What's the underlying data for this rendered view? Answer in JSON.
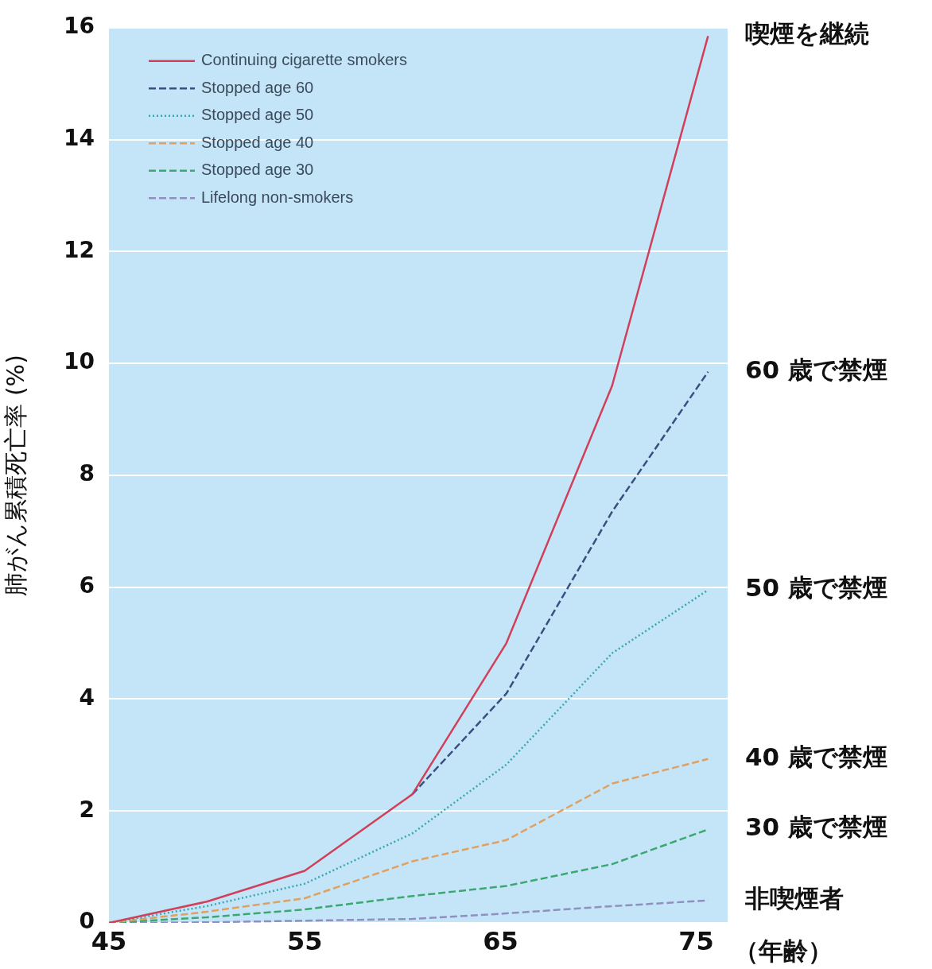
{
  "chart_data": {
    "type": "line",
    "xlabel": "（年齢）",
    "ylabel": "肺がん累積死亡率 (%)",
    "x": [
      45,
      50,
      55,
      60.5,
      65.3,
      70.7,
      75.6
    ],
    "series": [
      {
        "name": "Continuing cigarette smokers",
        "color": "#d0405a",
        "line_style": "solid",
        "values": [
          0,
          0.38,
          0.93,
          2.3,
          5.0,
          9.6,
          15.85
        ]
      },
      {
        "name": "Stopped age 60",
        "color": "#3a4f80",
        "line_style": "dashed",
        "x": [
          60.5,
          65.3,
          70.7,
          75.6
        ],
        "values": [
          2.3,
          4.1,
          7.35,
          9.85
        ]
      },
      {
        "name": "Stopped age 50",
        "color": "#3aa6b0",
        "line_style": "dotted",
        "values": [
          0,
          0.3,
          0.7,
          1.6,
          2.83,
          4.82,
          5.95
        ]
      },
      {
        "name": "Stopped age 40",
        "color": "#e0a060",
        "line_style": "dashed",
        "values": [
          0,
          0.2,
          0.44,
          1.1,
          1.48,
          2.49,
          2.93
        ]
      },
      {
        "name": "Stopped age 30",
        "color": "#3aa870",
        "line_style": "dashed",
        "values": [
          0,
          0.1,
          0.24,
          0.48,
          0.66,
          1.05,
          1.67
        ]
      },
      {
        "name": "Lifelong non-smokers",
        "color": "#9090c0",
        "line_style": "dashed",
        "values": [
          0,
          0.01,
          0.04,
          0.07,
          0.17,
          0.3,
          0.4
        ]
      }
    ],
    "xlim": [
      45,
      76.6
    ],
    "ylim": [
      0,
      16
    ],
    "xticks": [
      45,
      55,
      65,
      75
    ],
    "yticks": [
      0,
      2,
      4,
      6,
      8,
      10,
      12,
      14,
      16
    ],
    "grid": "y",
    "legend": "top left",
    "marker": "none",
    "annotations": [
      "喫煙を継続",
      "60 歳で禁煙",
      "50 歳で禁煙",
      "40 歳で禁煙",
      "30 歳で禁煙",
      "非喫煙者"
    ]
  }
}
